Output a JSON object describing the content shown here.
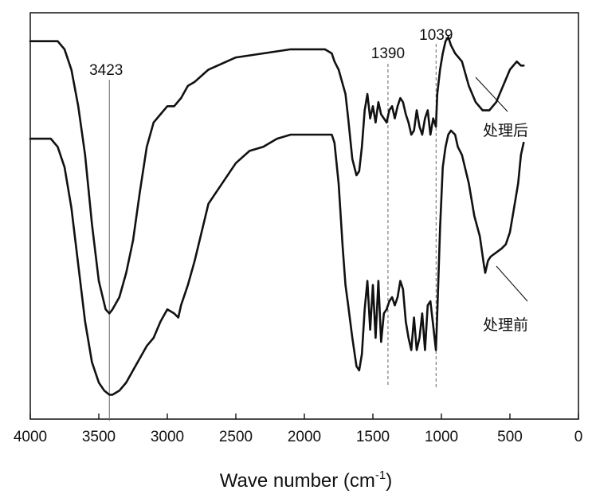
{
  "chart_data": {
    "type": "line",
    "xlabel_main": "Wave number (cm",
    "xlabel_sup": "-1",
    "xlabel_end": ")",
    "ylabel": "",
    "title": "",
    "xlim": [
      4000,
      0
    ],
    "x_reversed": true,
    "xticks": [
      4000,
      3500,
      3000,
      2500,
      2000,
      1500,
      1000,
      500,
      0
    ],
    "grid": false,
    "legend": "none",
    "colors": {
      "line": "#111111",
      "guide": "#666666"
    },
    "reference_lines": [
      {
        "x": 3423,
        "label": "3423"
      },
      {
        "x": 1390,
        "label": "1390"
      },
      {
        "x": 1039,
        "label": "1039"
      }
    ],
    "series": [
      {
        "name": "处理后",
        "x": [
          4000,
          3800,
          3750,
          3700,
          3650,
          3600,
          3550,
          3500,
          3450,
          3423,
          3400,
          3350,
          3300,
          3250,
          3200,
          3150,
          3100,
          3050,
          3000,
          2950,
          2900,
          2850,
          2800,
          2700,
          2500,
          2300,
          2100,
          1900,
          1850,
          1800,
          1780,
          1750,
          1700,
          1680,
          1650,
          1620,
          1600,
          1580,
          1560,
          1540,
          1520,
          1500,
          1480,
          1460,
          1440,
          1420,
          1400,
          1380,
          1360,
          1340,
          1320,
          1300,
          1280,
          1260,
          1240,
          1220,
          1200,
          1180,
          1160,
          1140,
          1120,
          1100,
          1080,
          1060,
          1040,
          1030,
          1010,
          990,
          970,
          950,
          930,
          900,
          850,
          800,
          750,
          700,
          650,
          600,
          550,
          500,
          450,
          420,
          400
        ],
        "y": [
          93,
          93,
          91,
          86,
          77,
          65,
          48,
          34,
          27,
          26,
          27,
          30,
          36,
          44,
          56,
          67,
          73,
          75,
          77,
          77,
          79,
          82,
          83,
          86,
          89,
          90,
          91,
          91,
          91,
          90,
          88,
          86,
          80,
          74,
          64,
          60,
          61,
          67,
          76,
          80,
          74,
          77,
          73,
          78,
          75,
          74,
          73,
          76,
          77,
          74,
          77,
          79,
          78,
          75,
          73,
          70,
          71,
          76,
          72,
          70,
          74,
          76,
          70,
          74,
          72,
          80,
          86,
          90,
          93,
          94,
          92,
          90,
          88,
          82,
          78,
          76,
          76,
          78,
          82,
          86,
          88,
          87,
          87
        ]
      },
      {
        "name": "处理前",
        "x": [
          4000,
          3850,
          3800,
          3750,
          3700,
          3650,
          3600,
          3550,
          3500,
          3460,
          3423,
          3400,
          3350,
          3300,
          3250,
          3200,
          3150,
          3100,
          3050,
          3000,
          2950,
          2920,
          2900,
          2850,
          2800,
          2750,
          2700,
          2600,
          2500,
          2400,
          2300,
          2200,
          2100,
          2000,
          1950,
          1900,
          1850,
          1800,
          1780,
          1750,
          1720,
          1700,
          1680,
          1650,
          1620,
          1600,
          1580,
          1560,
          1540,
          1520,
          1500,
          1480,
          1460,
          1440,
          1420,
          1400,
          1380,
          1360,
          1340,
          1320,
          1300,
          1280,
          1260,
          1240,
          1220,
          1200,
          1180,
          1160,
          1140,
          1120,
          1100,
          1080,
          1060,
          1040,
          1030,
          1010,
          990,
          970,
          950,
          930,
          900,
          880,
          850,
          800,
          760,
          720,
          690,
          680,
          660,
          640,
          600,
          560,
          530,
          500,
          470,
          440,
          420,
          400
        ],
        "y": [
          69,
          69,
          67,
          62,
          52,
          38,
          24,
          14,
          9,
          7,
          6,
          6,
          7,
          9,
          12,
          15,
          18,
          20,
          24,
          27,
          26,
          25,
          28,
          33,
          39,
          46,
          53,
          58,
          63,
          66,
          67,
          69,
          70,
          70,
          70,
          70,
          70,
          70,
          68,
          58,
          42,
          33,
          28,
          20,
          13,
          12,
          16,
          27,
          34,
          22,
          33,
          20,
          34,
          19,
          26,
          27,
          29,
          30,
          28,
          30,
          34,
          32,
          24,
          20,
          17,
          25,
          17,
          20,
          26,
          17,
          28,
          29,
          23,
          17,
          26,
          47,
          62,
          67,
          70,
          71,
          70,
          67,
          65,
          58,
          50,
          45,
          38,
          36,
          39,
          40,
          41,
          42,
          43,
          46,
          52,
          58,
          65,
          68
        ]
      }
    ],
    "annotations": [
      {
        "text": "处理后",
        "ax": 617,
        "ay": 80
      },
      {
        "text": "处理前",
        "ax": 680,
        "ay": 47
      }
    ]
  }
}
